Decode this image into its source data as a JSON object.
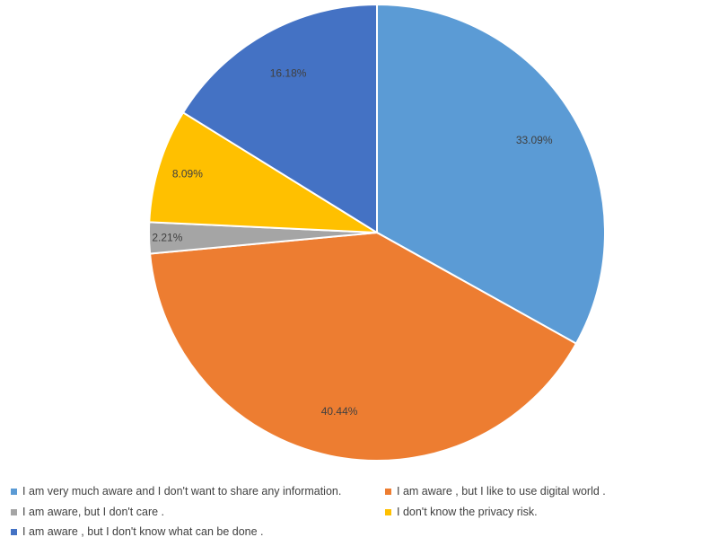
{
  "chart_data": {
    "type": "pie",
    "title": "",
    "start_angle_deg": 0,
    "direction": "clockwise",
    "legend_position": "bottom",
    "slices": [
      {
        "label": "I am very much aware and I don't want to share any information.",
        "value": 33.09,
        "display": "33.09%",
        "color": "#5B9BD5"
      },
      {
        "label": "I am aware , but I like to use digital world .",
        "value": 40.44,
        "display": "40.44%",
        "color": "#ED7D31"
      },
      {
        "label": "I am aware, but I don't care .",
        "value": 2.21,
        "display": "2.21%",
        "color": "#A5A5A5"
      },
      {
        "label": "I don't know the privacy risk.",
        "value": 8.09,
        "display": "8.09%",
        "color": "#FFC000"
      },
      {
        "label": "I am aware , but I don't know what can be done .",
        "value": 16.18,
        "display": "16.18%",
        "color": "#4472C4"
      }
    ]
  }
}
